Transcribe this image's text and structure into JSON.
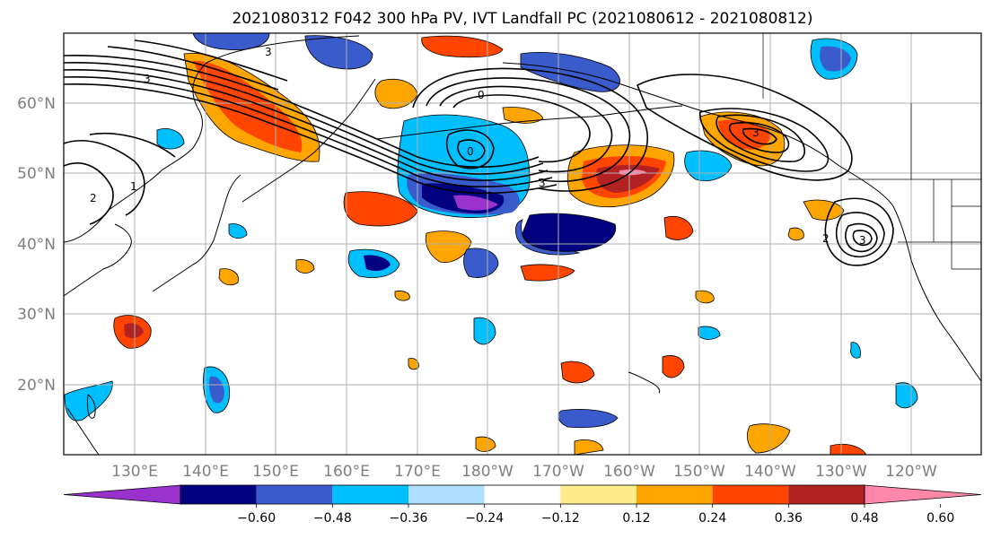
{
  "title": "2021080312 F042 300 hPa PV, IVT Landfall PC (2021080612 - 2021080812)",
  "lat_labels": [
    "20°N",
    "30°N",
    "40°N",
    "50°N",
    "60°N"
  ],
  "lon_labels": [
    "130°E",
    "140°E",
    "150°E",
    "160°E",
    "170°E",
    "180°W",
    "170°W",
    "160°W",
    "150°W",
    "140°W",
    "130°W",
    "120°W"
  ],
  "colorbar": {
    "colors": [
      "#9932cc",
      "#000080",
      "#3a5bcc",
      "#00bfff",
      "#b0e0ff",
      "#ffffff",
      "#ffec8b",
      "#ffa500",
      "#ff4500",
      "#b22222",
      "#ff88aa"
    ],
    "tick_labels": [
      "−0.60",
      "−0.48",
      "−0.36",
      "−0.24",
      "−0.12",
      "0.12",
      "0.24",
      "0.36",
      "0.48",
      "0.60"
    ]
  },
  "contour_labels": [
    "3",
    "2",
    "1",
    "0",
    "3",
    "3",
    "0",
    "3",
    "2",
    "3"
  ]
}
